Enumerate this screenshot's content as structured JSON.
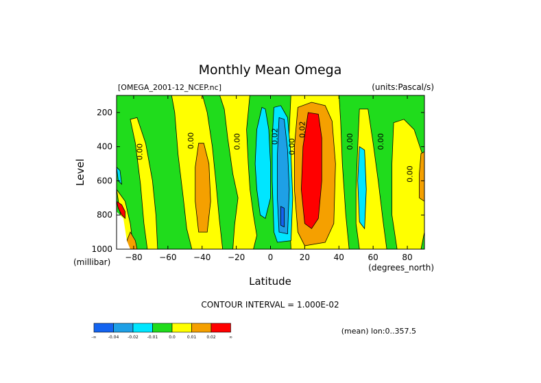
{
  "chart_data": {
    "type": "heatmap",
    "title": "Monthly Mean Omega",
    "source_label": "[OMEGA_2001-12_NCEP.nc]",
    "units_label": "(units:Pascal/s)",
    "xlabel": "Latitude",
    "x_unit_label": "(degrees_north)",
    "ylabel": "Level",
    "y_unit_label": "(millibar)",
    "xlim": [
      -90,
      90
    ],
    "ylim": [
      1000,
      100
    ],
    "x_ticks": [
      -80,
      -60,
      -40,
      -20,
      0,
      20,
      40,
      60,
      80
    ],
    "y_ticks": [
      200,
      400,
      600,
      800,
      1000
    ],
    "contour_interval_text": "CONTOUR INTERVAL = 1.000E-02",
    "mean_note": "(mean) lon:0..357.5",
    "contour_labels": [
      {
        "text": "0.00",
        "lat": -75,
        "level": 430
      },
      {
        "text": "0.00",
        "lat": -45,
        "level": 365
      },
      {
        "text": "0.00",
        "lat": -18,
        "level": 370
      },
      {
        "text": "0.02",
        "lat": 4,
        "level": 340
      },
      {
        "text": "0.00",
        "lat": 14,
        "level": 400
      },
      {
        "text": "0.02",
        "lat": 20,
        "level": 300
      },
      {
        "text": "0.00",
        "lat": 48,
        "level": 370
      },
      {
        "text": "0.00",
        "lat": 66,
        "level": 370
      },
      {
        "text": "0.00",
        "lat": 83,
        "level": 560
      }
    ],
    "legend": {
      "bins": [
        {
          "color": "#1464f0",
          "label": "-0.04"
        },
        {
          "color": "#1ea0e6",
          "label": "-0.02"
        },
        {
          "color": "#00e6ff",
          "label": "-0.01"
        },
        {
          "color": "#20dc1c",
          "label": "0.0"
        },
        {
          "color": "#ffff00",
          "label": "0.01"
        },
        {
          "color": "#f5a000",
          "label": "0.02"
        },
        {
          "color": "#ff0000",
          "label": "∞"
        }
      ],
      "left_end_label": "-∞"
    },
    "colors": {
      "green": "#20dc1c",
      "yellow": "#ffff00",
      "orange": "#f5a000",
      "red": "#ff0000",
      "cyan": "#00e6ff",
      "blue": "#1ea0e6",
      "darkblue": "#1464f0"
    }
  }
}
